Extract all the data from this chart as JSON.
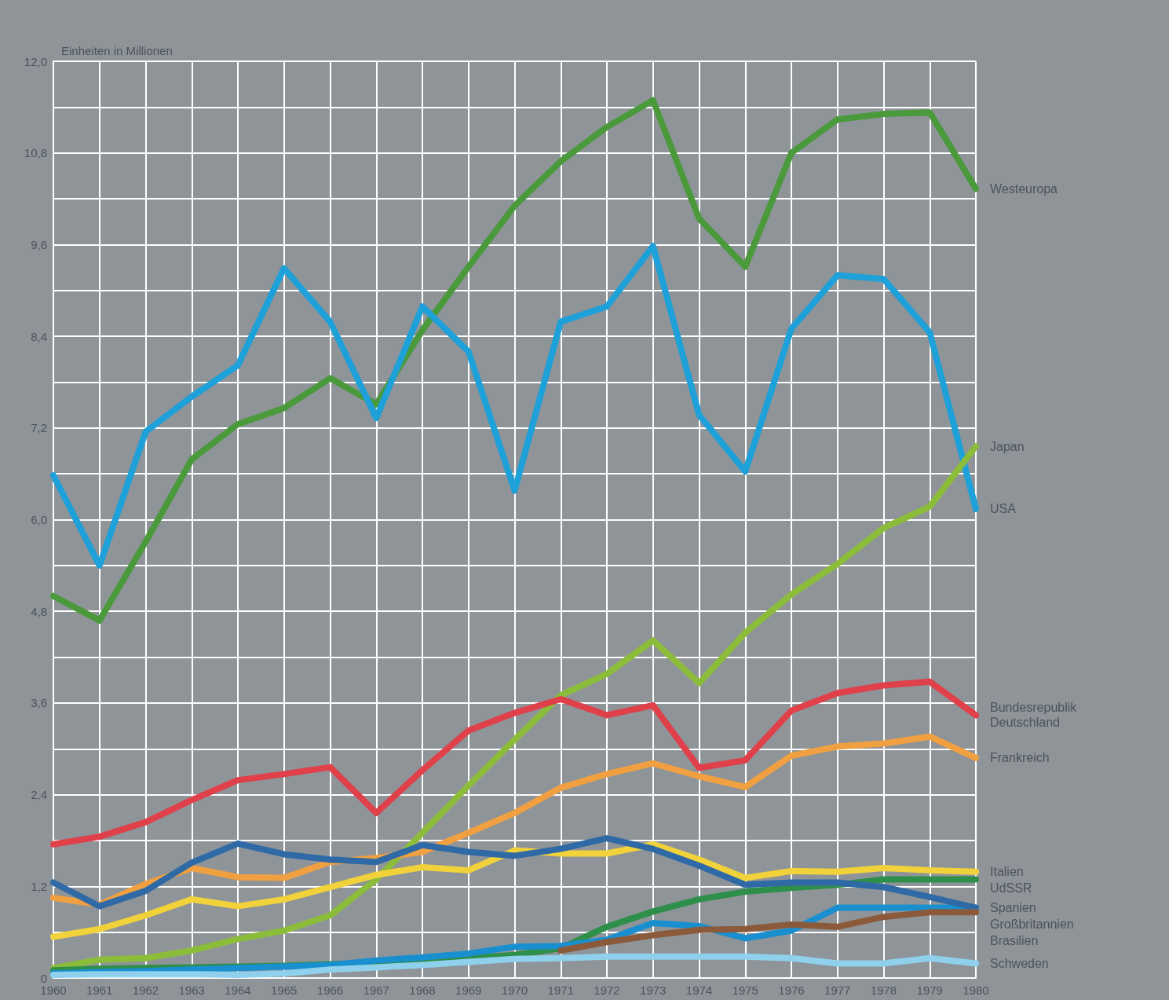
{
  "chart_data": {
    "type": "line",
    "ylabel": "Einheiten in Millionen",
    "categories": [
      "1960",
      "1961",
      "1962",
      "1963",
      "1964",
      "1965",
      "1966",
      "1967",
      "1968",
      "1969",
      "1970",
      "1971",
      "1972",
      "1973",
      "1974",
      "1975",
      "1976",
      "1977",
      "1978",
      "1979",
      "1980"
    ],
    "ylim": [
      0,
      12
    ],
    "yticks": [
      0,
      {
        "value": 0.6,
        "label": null
      },
      {
        "value": 1.2,
        "label": "1,2"
      },
      {
        "value": 1.8,
        "label": null
      },
      {
        "value": 2.4,
        "label": "2,4"
      },
      {
        "value": 3.0,
        "label": null
      },
      {
        "value": 3.6,
        "label": "3,6"
      },
      {
        "value": 4.2,
        "label": null
      },
      {
        "value": 4.8,
        "label": "4,8"
      },
      {
        "value": 5.4,
        "label": null
      },
      {
        "value": 6.0,
        "label": "6,0"
      },
      {
        "value": 6.6,
        "label": null
      },
      {
        "value": 7.2,
        "label": "7,2"
      },
      {
        "value": 7.8,
        "label": null
      },
      {
        "value": 8.4,
        "label": "8,4"
      },
      {
        "value": 9.0,
        "label": null
      },
      {
        "value": 9.6,
        "label": "9,6"
      },
      {
        "value": 10.2,
        "label": null
      },
      {
        "value": 10.8,
        "label": "10,8"
      },
      {
        "value": 11.4,
        "label": null
      },
      {
        "value": 12.0,
        "label": "12,0"
      }
    ],
    "grid": true,
    "marker": "none",
    "series": [
      {
        "name": "Westeuropa",
        "color": "#4a9a3c",
        "values": [
          5.0,
          4.68,
          5.71,
          6.79,
          7.25,
          7.46,
          7.85,
          7.51,
          8.48,
          9.31,
          10.11,
          10.69,
          11.14,
          11.49,
          9.94,
          9.31,
          10.8,
          11.24,
          11.31,
          11.33,
          10.33
        ]
      },
      {
        "name": "USA",
        "color": "#1ea0d8",
        "values": [
          6.58,
          5.4,
          7.15,
          7.61,
          8.02,
          9.29,
          8.59,
          7.33,
          8.79,
          8.2,
          6.38,
          8.59,
          8.79,
          9.58,
          7.37,
          6.63,
          8.5,
          9.2,
          9.15,
          8.45,
          6.14
        ]
      },
      {
        "name": "Japan",
        "color": "#8cbd3a",
        "values": [
          0.13,
          0.24,
          0.26,
          0.36,
          0.51,
          0.62,
          0.82,
          1.29,
          1.9,
          2.52,
          3.12,
          3.7,
          3.98,
          4.42,
          3.86,
          4.52,
          5.02,
          5.42,
          5.89,
          6.17,
          6.96
        ]
      },
      {
        "name": "Bundesrepublik Deutschland",
        "color": "#e0404a",
        "values": [
          1.75,
          1.85,
          2.04,
          2.33,
          2.59,
          2.67,
          2.76,
          2.16,
          2.72,
          3.24,
          3.47,
          3.65,
          3.44,
          3.57,
          2.75,
          2.85,
          3.5,
          3.73,
          3.83,
          3.88,
          3.44
        ]
      },
      {
        "name": "Frankreich",
        "color": "#f0a040",
        "values": [
          1.05,
          0.96,
          1.23,
          1.44,
          1.32,
          1.31,
          1.52,
          1.57,
          1.65,
          1.9,
          2.16,
          2.49,
          2.67,
          2.81,
          2.64,
          2.5,
          2.91,
          3.03,
          3.07,
          3.16,
          2.88
        ]
      },
      {
        "name": "Italien",
        "color": "#f2d23a",
        "values": [
          0.54,
          0.64,
          0.82,
          1.03,
          0.94,
          1.03,
          1.19,
          1.35,
          1.45,
          1.41,
          1.67,
          1.63,
          1.63,
          1.75,
          1.55,
          1.31,
          1.4,
          1.39,
          1.44,
          1.41,
          1.39
        ]
      },
      {
        "name": "UdSSR",
        "color": "#2e8f4a",
        "values": [
          0.1,
          0.12,
          0.13,
          0.14,
          0.15,
          0.16,
          0.18,
          0.2,
          0.23,
          0.26,
          0.3,
          0.39,
          0.67,
          0.87,
          1.03,
          1.13,
          1.18,
          1.22,
          1.29,
          1.29,
          1.29
        ]
      },
      {
        "name": "Spanien",
        "color": "#1a8fd0",
        "values": [
          0.06,
          0.08,
          0.09,
          0.11,
          0.13,
          0.15,
          0.17,
          0.23,
          0.27,
          0.32,
          0.41,
          0.42,
          0.5,
          0.72,
          0.68,
          0.52,
          0.62,
          0.92,
          0.92,
          0.92,
          0.92
        ]
      },
      {
        "name": "Großbritannien",
        "color": "#2f6aa6",
        "values": [
          1.25,
          0.94,
          1.14,
          1.51,
          1.76,
          1.62,
          1.55,
          1.52,
          1.74,
          1.65,
          1.6,
          1.69,
          1.83,
          1.69,
          1.47,
          1.22,
          1.25,
          1.25,
          1.19,
          1.06,
          0.92
        ]
      },
      {
        "name": "Brasilien",
        "color": "#8a5a3a",
        "values": [
          null,
          null,
          null,
          null,
          null,
          null,
          null,
          null,
          null,
          null,
          null,
          0.36,
          0.47,
          0.56,
          0.63,
          0.64,
          0.7,
          0.67,
          0.8,
          0.86,
          0.86
        ]
      },
      {
        "name": "Schweden",
        "color": "#8fd0ec",
        "values": [
          0.04,
          0.05,
          0.05,
          0.05,
          0.04,
          0.06,
          0.11,
          0.14,
          0.17,
          0.21,
          0.25,
          0.26,
          0.28,
          0.28,
          0.28,
          0.28,
          0.26,
          0.19,
          0.19,
          0.26,
          0.19
        ]
      }
    ]
  }
}
